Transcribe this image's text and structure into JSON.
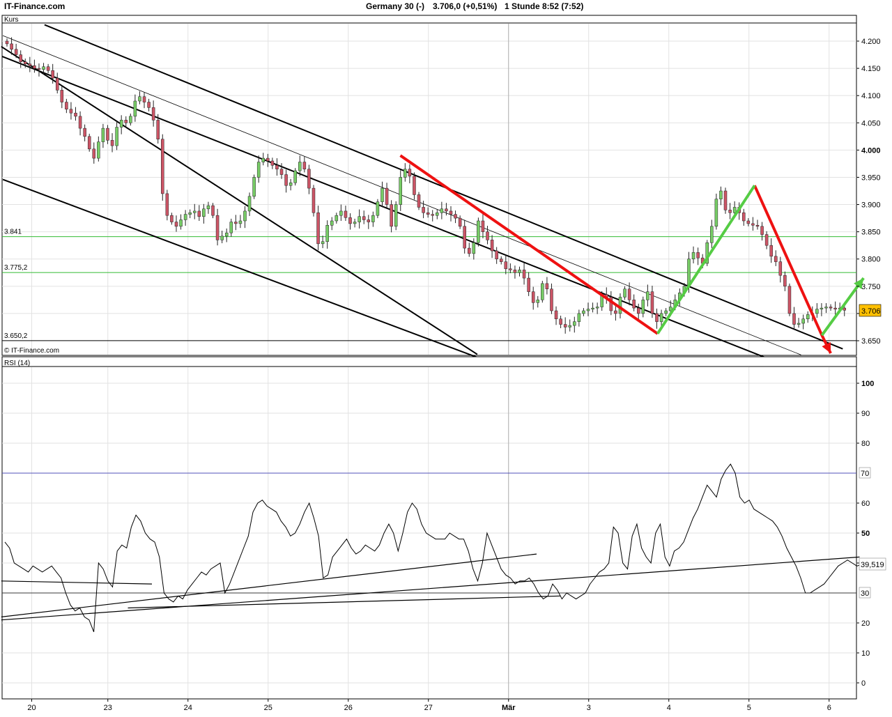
{
  "header": {
    "site": "IT-Finance.com",
    "instrument": "Germany 30 (-)",
    "quote": "3.706,0 (+0,51%)",
    "interval": "1 Stunde  8:52 (7:52)"
  },
  "colors": {
    "up_candle": "#77cc66",
    "down_candle": "#cc5566",
    "support_line": "#33bb33",
    "red_arrow": "#ee1111",
    "green_arrow": "#55cc44",
    "price_badge": "#ffc000",
    "rsi_level": "#2222aa"
  },
  "chart_data": [
    {
      "type": "line",
      "panel_label": "Kurs",
      "watermark": "© IT-Finance.com",
      "ylim": [
        3620,
        4235
      ],
      "y_ticks": [
        3650,
        3700,
        3750,
        3800,
        3850,
        3900,
        3950,
        4000,
        4050,
        4100,
        4150,
        4200
      ],
      "y_tick_labels": [
        "3.650",
        "3.700",
        "3.750",
        "3.800",
        "3.850",
        "3.900",
        "3.950",
        "4.000",
        "4.050",
        "4.100",
        "4.150",
        "4.200"
      ],
      "x_ticks": [
        "20",
        "23",
        "24",
        "25",
        "26",
        "27",
        "Mär",
        "3",
        "4",
        "5",
        "6"
      ],
      "x_tick_pos": [
        0.1,
        1.05,
        2.05,
        3.05,
        4.05,
        5.05,
        6.05,
        7.05,
        8.05,
        9.05,
        10.05
      ],
      "last_price_label": "3.706",
      "last_price": 3706,
      "horizontal_levels": [
        {
          "value": 3841,
          "label": "3.841"
        },
        {
          "value": 3775.2,
          "label": "3.775,2"
        },
        {
          "value": 3650.2,
          "label": "3.650,2"
        }
      ],
      "series": [
        {
          "values": [
            4195,
            4185,
            4175,
            4162,
            4158,
            4155,
            4150,
            4148,
            4153,
            4146,
            4132,
            4110,
            4088,
            4075,
            4068,
            4062,
            4040,
            4025,
            4002,
            3985,
            4015,
            4040,
            4018,
            4008,
            4042,
            4055,
            4050,
            4062,
            4090,
            4098,
            4088,
            4078,
            4055,
            4020,
            3920,
            3880,
            3868,
            3860,
            3872,
            3882,
            3885,
            3888,
            3878,
            3892,
            3898,
            3880,
            3835,
            3842,
            3848,
            3868,
            3865,
            3870,
            3888,
            3915,
            3950,
            3978,
            3985,
            3980,
            3972,
            3965,
            3955,
            3935,
            3940,
            3962,
            3978,
            3965,
            3930,
            3885,
            3828,
            3832,
            3862,
            3870,
            3880,
            3888,
            3876,
            3865,
            3868,
            3878,
            3872,
            3868,
            3880,
            3905,
            3930,
            3900,
            3860,
            3900,
            3950,
            3965,
            3952,
            3918,
            3895,
            3885,
            3882,
            3880,
            3885,
            3892,
            3888,
            3882,
            3875,
            3860,
            3820,
            3810,
            3830,
            3870,
            3850,
            3835,
            3815,
            3800,
            3795,
            3782,
            3780,
            3775,
            3780,
            3765,
            3740,
            3720,
            3725,
            3755,
            3745,
            3705,
            3690,
            3680,
            3675,
            3678,
            3685,
            3700,
            3705,
            3708,
            3710,
            3712,
            3735,
            3730,
            3705,
            3700,
            3730,
            3745,
            3725,
            3710,
            3700,
            3725,
            3740,
            3700,
            3685,
            3700,
            3705,
            3712,
            3725,
            3738,
            3750,
            3800,
            3812,
            3802,
            3792,
            3830,
            3860,
            3910,
            3925,
            3890,
            3885,
            3895,
            3885,
            3870,
            3865,
            3862,
            3860,
            3845,
            3825,
            3805,
            3795,
            3770,
            3750,
            3700,
            3680,
            3682,
            3690,
            3698,
            3700,
            3708,
            3710,
            3712,
            3710,
            3708,
            3710,
            3706
          ]
        }
      ],
      "annotations": {
        "channel_lines": [
          {
            "from": [
              -0.28,
              4190
            ],
            "to": [
              5.66,
              3625
            ]
          },
          {
            "from": [
              -0.27,
              4172
            ],
            "to": [
              9.24,
              3620
            ]
          },
          {
            "from": [
              -0.26,
              4210
            ],
            "to": [
              9.7,
              3624
            ]
          },
          {
            "from": [
              0.26,
              4230
            ],
            "to": [
              10.22,
              3635
            ]
          },
          {
            "from": [
              -0.26,
              3946
            ],
            "to": [
              5.65,
              3620
            ]
          }
        ],
        "red_arrows": [
          {
            "points": [
              [
                4.7,
                3990
              ],
              [
                7.91,
                3663
              ]
            ]
          },
          {
            "points": [
              [
                9.12,
                3935
              ],
              [
                9.96,
                3660
              ],
              [
                10.07,
                3627
              ]
            ]
          }
        ],
        "green_arrows": [
          {
            "points": [
              [
                7.91,
                3663
              ],
              [
                9.12,
                3935
              ]
            ]
          },
          {
            "points": [
              [
                9.96,
                3660
              ],
              [
                10.48,
                3765
              ]
            ]
          }
        ]
      }
    },
    {
      "type": "line",
      "panel_label": "RSI (14)",
      "ylim": [
        -5,
        107
      ],
      "y_ticks": [
        0,
        10,
        20,
        30,
        40,
        50,
        60,
        70,
        80,
        90,
        100
      ],
      "y_tick_labels": [
        "0",
        "10",
        "20",
        "30",
        "40",
        "50",
        "60",
        "70",
        "80",
        "90",
        "100"
      ],
      "levels": [
        {
          "value": 70,
          "label": "70"
        },
        {
          "value": 30,
          "label": "30"
        }
      ],
      "last_value_label": "39,519",
      "last_value": 39.5,
      "series": [
        {
          "values": [
            47,
            45,
            40,
            39,
            38,
            37,
            39,
            38,
            37,
            38,
            39,
            37,
            35,
            30,
            26,
            24,
            25,
            22,
            21,
            17,
            40,
            38,
            34,
            32,
            44,
            46,
            45,
            52,
            56,
            54,
            50,
            48,
            47,
            42,
            30,
            28,
            27,
            29,
            28,
            31,
            33,
            35,
            37,
            36,
            38,
            39,
            40,
            30,
            33,
            37,
            41,
            45,
            49,
            57,
            60,
            61,
            59,
            58,
            57,
            54,
            52,
            49,
            50,
            53,
            57,
            60,
            55,
            49,
            35,
            36,
            42,
            44,
            46,
            48,
            45,
            43,
            44,
            46,
            45,
            44,
            46,
            50,
            53,
            50,
            44,
            50,
            57,
            60,
            58,
            53,
            50,
            49,
            48,
            48,
            48,
            50,
            49,
            48,
            48,
            44,
            38,
            34,
            40,
            50,
            46,
            42,
            38,
            36,
            35,
            33,
            34,
            34,
            35,
            33,
            30,
            28,
            29,
            33,
            31,
            28,
            30,
            29,
            28,
            29,
            30,
            33,
            35,
            37,
            38,
            40,
            52,
            50,
            40,
            38,
            49,
            53,
            45,
            42,
            40,
            50,
            53,
            42,
            39,
            44,
            45,
            47,
            51,
            55,
            58,
            62,
            66,
            64,
            62,
            68,
            71,
            73,
            70,
            62,
            60,
            61,
            58,
            57,
            56,
            55,
            54,
            52,
            49,
            45,
            42,
            39,
            35,
            30,
            30,
            31,
            32,
            33,
            35,
            37,
            39,
            40,
            41,
            40,
            39,
            39.5
          ]
        }
      ],
      "annotations": {
        "trend_lines": [
          {
            "from": [
              -0.28,
              21
            ],
            "to": [
              10.43,
              42
            ]
          },
          {
            "from": [
              -0.28,
              22
            ],
            "to": [
              6.4,
              43
            ]
          },
          {
            "from": [
              -0.28,
              34
            ],
            "to": [
              1.6,
              33
            ]
          },
          {
            "from": [
              1.3,
              25
            ],
            "to": [
              6.7,
              29
            ]
          }
        ]
      }
    }
  ]
}
